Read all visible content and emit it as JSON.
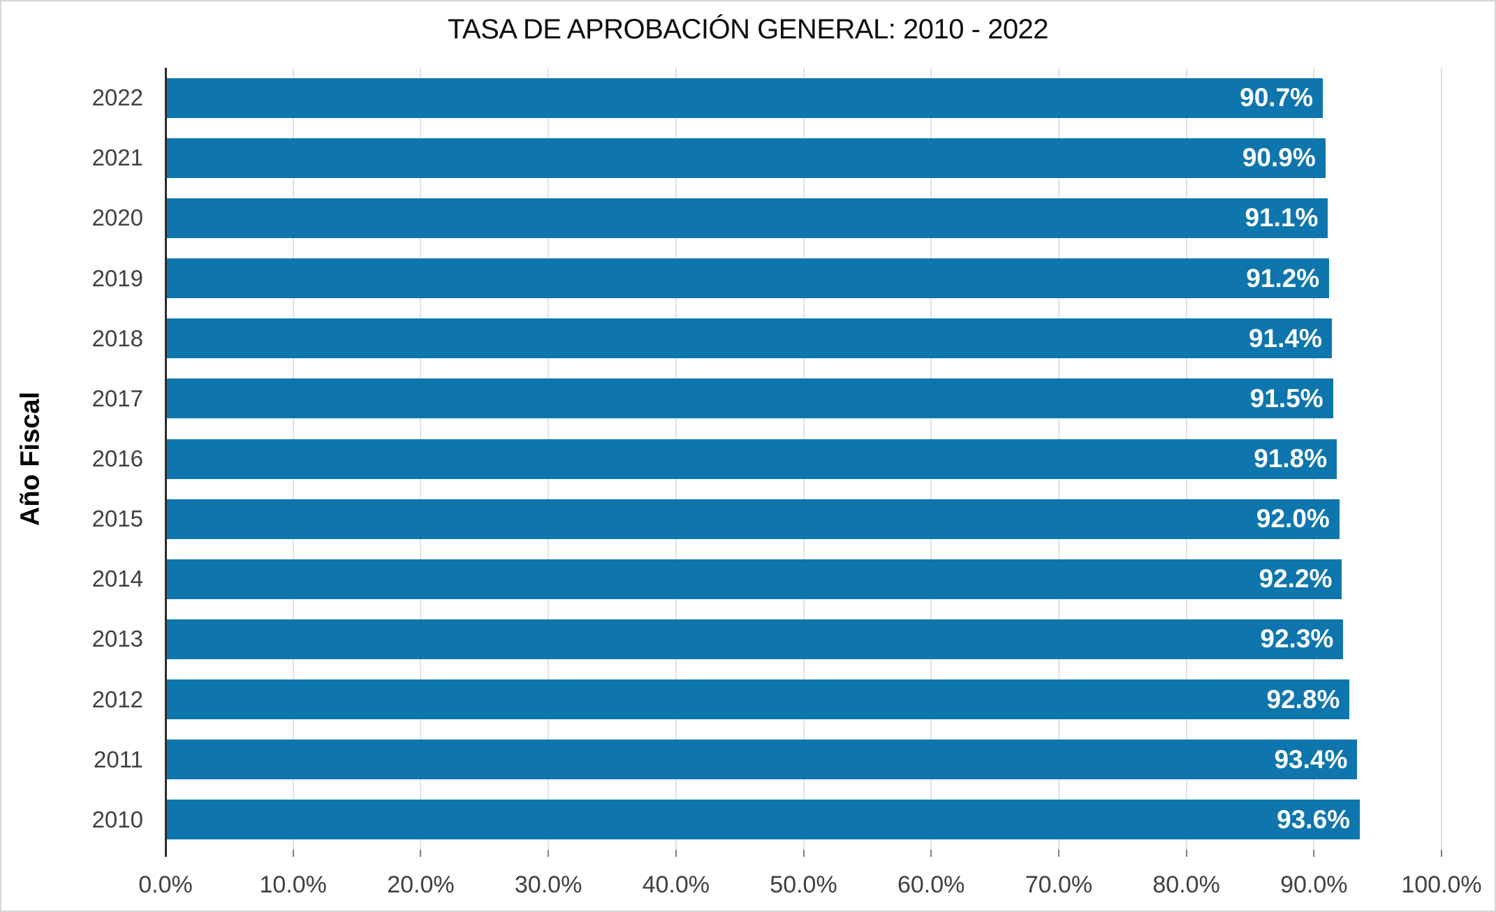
{
  "chart_data": {
    "type": "bar",
    "orientation": "horizontal",
    "title": "TASA DE APROBACIÓN GENERAL: 2010 - 2022",
    "xlabel": "",
    "ylabel": "Año Fiscal",
    "categories": [
      "2022",
      "2021",
      "2020",
      "2019",
      "2018",
      "2017",
      "2016",
      "2015",
      "2014",
      "2013",
      "2012",
      "2011",
      "2010"
    ],
    "values": [
      90.7,
      90.9,
      91.1,
      91.2,
      91.4,
      91.5,
      91.8,
      92.0,
      92.2,
      92.3,
      92.8,
      93.4,
      93.6
    ],
    "value_labels": [
      "90.7%",
      "90.9%",
      "91.1%",
      "91.2%",
      "91.4%",
      "91.5%",
      "91.8%",
      "92.0%",
      "92.2%",
      "92.3%",
      "92.8%",
      "93.4%",
      "93.6%"
    ],
    "xlim": [
      0,
      100
    ],
    "x_ticks": [
      0,
      10,
      20,
      30,
      40,
      50,
      60,
      70,
      80,
      90,
      100
    ],
    "x_tick_labels": [
      "0.0%",
      "10.0%",
      "20.0%",
      "30.0%",
      "40.0%",
      "50.0%",
      "60.0%",
      "70.0%",
      "80.0%",
      "90.0%",
      "100.0%"
    ],
    "grid": "vertical-on",
    "legend": "none",
    "colors": {
      "bar": "#0e76ad",
      "value_label": "#ffffff",
      "axis_text": "#404040",
      "gridline": "#e2e2e2",
      "axis_line": "#2b2b2b",
      "title_text": "#0d0d0d"
    }
  }
}
